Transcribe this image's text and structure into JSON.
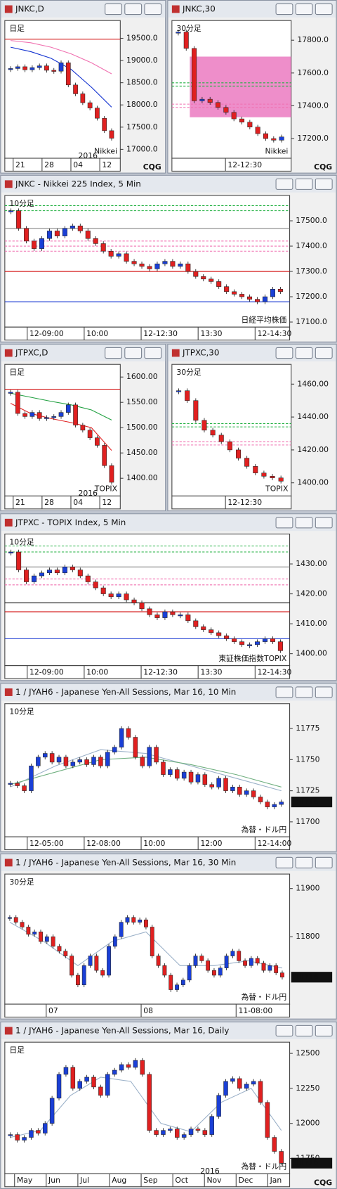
{
  "windows": [
    {
      "title": "JNKC,D",
      "chart": {
        "type": "candle",
        "label": "日足",
        "label_color": "#1030d0",
        "source": "Nikkei",
        "source_color": "#1030d0",
        "up_color": "#1a3fd6",
        "down_color": "#e02020",
        "ylim": [
          16800,
          19900
        ],
        "yticks": [
          {
            "value": 17000,
            "label": "17000.0"
          },
          {
            "value": 17500,
            "label": "17500.0"
          },
          {
            "value": 18000,
            "label": "18000.0"
          },
          {
            "value": 18500,
            "label": "18500.0"
          },
          {
            "value": 19000,
            "label": "19000.0"
          },
          {
            "value": 19500,
            "label": "19500.0"
          }
        ],
        "xlabels": [
          "21",
          "28",
          "04",
          "12"
        ],
        "year": "2016",
        "logo": "CQG",
        "values": [
          18820,
          18860,
          18790,
          18840,
          18880,
          18780,
          18760,
          18950,
          18450,
          18250,
          18050,
          17930,
          17700,
          17420,
          17250
        ],
        "levels": [
          {
            "value": 19480,
            "color": "#d00000",
            "style": "solid"
          }
        ],
        "mas": [
          {
            "color": "#f070b0",
            "values": [
              19450,
              19400,
              19300,
              19150,
              18950,
              18700
            ]
          },
          {
            "color": "#1030d0",
            "values": [
              19300,
              19200,
              19050,
              18800,
              18400,
              17950
            ]
          }
        ]
      }
    },
    {
      "title": "JNKC,30",
      "chart": {
        "type": "candle",
        "label": "30分足",
        "label_color": "#1030d0",
        "source": "Nikkei",
        "source_color": "#1030d0",
        "up_color": "#1a3fd6",
        "down_color": "#e02020",
        "ylim": [
          17080,
          17920
        ],
        "yticks": [
          {
            "value": 17200,
            "label": "17200.0"
          },
          {
            "value": 17400,
            "label": "17400.0"
          },
          {
            "value": 17600,
            "label": "17600.0"
          },
          {
            "value": 17800,
            "label": "17800.0"
          }
        ],
        "xlabels": [
          "12-12:30"
        ],
        "logo": "CQG",
        "zone": [
          17330,
          17700
        ],
        "zone_color": "#e868b8",
        "values": [
          17850,
          17750,
          17430,
          17440,
          17420,
          17390,
          17360,
          17320,
          17300,
          17270,
          17230,
          17200,
          17190,
          17210
        ],
        "levels": [
          {
            "value": 17540,
            "color": "#20b040",
            "style": "dashed"
          },
          {
            "value": 17520,
            "color": "#20b040",
            "style": "dashed"
          },
          {
            "value": 17410,
            "color": "#f070b0",
            "style": "dashed"
          },
          {
            "value": 17390,
            "color": "#f070b0",
            "style": "dashed"
          }
        ]
      }
    },
    {
      "title": "JNKC - Nikkei 225 Index, 5 Min",
      "chart": {
        "type": "candle",
        "label": "10分足",
        "label_color": "#1030d0",
        "source": "日経平均株価",
        "source_color": "#1030d0",
        "up_color": "#1a3fd6",
        "down_color": "#e02020",
        "ylim": [
          17080,
          17600
        ],
        "yticks": [
          {
            "value": 17100,
            "label": "17100.0"
          },
          {
            "value": 17200,
            "label": "17200.0"
          },
          {
            "value": 17300,
            "label": "17300.0"
          },
          {
            "value": 17400,
            "label": "17400.0"
          },
          {
            "value": 17500,
            "label": "17500.0"
          }
        ],
        "xlabels": [
          "12-09:00",
          "10:00",
          "12-12:30",
          "13:30",
          "12-14:30"
        ],
        "values": [
          17540,
          17470,
          17420,
          17390,
          17430,
          17460,
          17440,
          17470,
          17480,
          17460,
          17430,
          17410,
          17380,
          17360,
          17370,
          17340,
          17330,
          17320,
          17310,
          17330,
          17340,
          17320,
          17330,
          17300,
          17280,
          17270,
          17260,
          17240,
          17220,
          17210,
          17200,
          17190,
          17180,
          17200,
          17230,
          17220
        ],
        "levels": [
          {
            "value": 17560,
            "color": "#20b040",
            "style": "dashed"
          },
          {
            "value": 17540,
            "color": "#20b040",
            "style": "dashed"
          },
          {
            "value": 17470,
            "color": "#888888",
            "style": "solid"
          },
          {
            "value": 17420,
            "color": "#f070b0",
            "style": "dashed"
          },
          {
            "value": 17400,
            "color": "#f070b0",
            "style": "dashed"
          },
          {
            "value": 17380,
            "color": "#f070b0",
            "style": "dashed"
          },
          {
            "value": 17300,
            "color": "#d00000",
            "style": "solid"
          },
          {
            "value": 17180,
            "color": "#1030d0",
            "style": "solid"
          }
        ]
      }
    },
    {
      "title": "JTPXC,D",
      "chart": {
        "type": "candle",
        "label": "日足",
        "label_color": "#e02020",
        "source": "TOPIX",
        "source_color": "#e02020",
        "up_color": "#1a3fd6",
        "down_color": "#e02020",
        "ylim": [
          1365,
          1625
        ],
        "yticks": [
          {
            "value": 1400,
            "label": "1400.00"
          },
          {
            "value": 1450,
            "label": "1450.00"
          },
          {
            "value": 1500,
            "label": "1500.00"
          },
          {
            "value": 1550,
            "label": "1550.00"
          },
          {
            "value": 1600,
            "label": "1600.00"
          }
        ],
        "xlabels": [
          "21",
          "28",
          "04",
          "12"
        ],
        "year": "2016",
        "values": [
          1570,
          1528,
          1522,
          1530,
          1518,
          1520,
          1522,
          1530,
          1545,
          1505,
          1495,
          1480,
          1465,
          1425,
          1392
        ],
        "levels": [
          {
            "value": 1576,
            "color": "#d00000",
            "style": "solid"
          }
        ],
        "mas": [
          {
            "color": "#20a040",
            "values": [
              1568,
              1560,
              1552,
              1545,
              1535,
              1515
            ]
          },
          {
            "color": "#e02020",
            "values": [
              1548,
              1528,
              1518,
              1510,
              1500,
              1455
            ]
          }
        ]
      }
    },
    {
      "title": "JTPXC,30",
      "chart": {
        "type": "candle",
        "label": "30分足",
        "label_color": "#e02020",
        "source": "TOPIX",
        "source_color": "#e02020",
        "up_color": "#1a3fd6",
        "down_color": "#e02020",
        "ylim": [
          1392,
          1472
        ],
        "yticks": [
          {
            "value": 1400,
            "label": "1400.00"
          },
          {
            "value": 1420,
            "label": "1420.00"
          },
          {
            "value": 1440,
            "label": "1440.00"
          },
          {
            "value": 1460,
            "label": "1460.00"
          }
        ],
        "xlabels": [
          "12-12:30"
        ],
        "values": [
          1456,
          1450,
          1438,
          1432,
          1429,
          1425,
          1420,
          1415,
          1410,
          1406,
          1404,
          1403,
          1401
        ],
        "levels": [
          {
            "value": 1436,
            "color": "#20b040",
            "style": "dashed"
          },
          {
            "value": 1434,
            "color": "#20b040",
            "style": "dashed"
          },
          {
            "value": 1425,
            "color": "#f070b0",
            "style": "dashed"
          },
          {
            "value": 1423,
            "color": "#f070b0",
            "style": "dashed"
          }
        ]
      }
    },
    {
      "title": "JTPXC - TOPIX Index, 5 Min",
      "chart": {
        "type": "candle",
        "label": "10分足",
        "label_color": "#e02020",
        "source": "東証株価指数TOPIX",
        "source_color": "#e02020",
        "up_color": "#1a3fd6",
        "down_color": "#e02020",
        "ylim": [
          1396,
          1440
        ],
        "yticks": [
          {
            "value": 1400,
            "label": "1400.00"
          },
          {
            "value": 1410,
            "label": "1410.00"
          },
          {
            "value": 1420,
            "label": "1420.00"
          },
          {
            "value": 1430,
            "label": "1430.00"
          }
        ],
        "xlabels": [
          "12-09:00",
          "10:00",
          "12-12:30",
          "13:30",
          "12-14:30"
        ],
        "values": [
          1434,
          1428,
          1424,
          1426,
          1427,
          1428,
          1427,
          1429,
          1428,
          1426,
          1424,
          1422,
          1420,
          1419,
          1420,
          1418,
          1417,
          1415,
          1413,
          1412,
          1414,
          1413,
          1413,
          1411,
          1409,
          1408,
          1407,
          1406,
          1405,
          1404,
          1403,
          1403,
          1404,
          1405,
          1404,
          1401
        ],
        "levels": [
          {
            "value": 1436,
            "color": "#20b040",
            "style": "dashed"
          },
          {
            "value": 1434,
            "color": "#20b040",
            "style": "dashed"
          },
          {
            "value": 1429,
            "color": "#888888",
            "style": "solid"
          },
          {
            "value": 1425,
            "color": "#f070b0",
            "style": "dashed"
          },
          {
            "value": 1423,
            "color": "#f070b0",
            "style": "dashed"
          },
          {
            "value": 1417,
            "color": "#111111",
            "style": "solid"
          },
          {
            "value": 1414,
            "color": "#d00000",
            "style": "solid"
          },
          {
            "value": 1405,
            "color": "#1030d0",
            "style": "solid"
          }
        ]
      }
    },
    {
      "title": "1 / JYAH6 - Japanese Yen-All Sessions, Mar 16, 10 Min",
      "chart": {
        "type": "candle",
        "label": "10分足",
        "label_color": "#109030",
        "source": "為替・ドル円",
        "source_color": "#109030",
        "up_color": "#1a3fd6",
        "down_color": "#e02020",
        "ylim": [
          11688,
          11795
        ],
        "yticks": [
          11700,
          11725,
          11750,
          11775
        ],
        "xlabels": [
          "12-05:00",
          "12-08:00",
          "10:00",
          "12:00",
          "12-14:00"
        ],
        "last": 11716,
        "values": [
          11731,
          11729,
          11725,
          11745,
          11752,
          11755,
          11748,
          11752,
          11745,
          11748,
          11750,
          11746,
          11752,
          11745,
          11756,
          11760,
          11775,
          11768,
          11752,
          11745,
          11760,
          11748,
          11738,
          11742,
          11735,
          11740,
          11732,
          11738,
          11730,
          11728,
          11735,
          11725,
          11728,
          11722,
          11725,
          11720,
          11716,
          11712,
          11714,
          11716
        ],
        "mas": [
          {
            "color": "#9ab0c8",
            "values": [
              11728,
              11745,
              11758,
              11755,
              11745,
              11735,
              11725
            ]
          },
          {
            "color": "#70b080",
            "values": [
              11730,
              11740,
              11750,
              11752,
              11746,
              11738,
              11728
            ]
          }
        ]
      }
    },
    {
      "title": "1 / JYAH6 - Japanese Yen-All Sessions, Mar 16, 30 Min",
      "chart": {
        "type": "candle",
        "label": "30分足",
        "label_color": "#109030",
        "source": "為替・ドル円",
        "source_color": "#109030",
        "up_color": "#1a3fd6",
        "down_color": "#e02020",
        "ylim": [
          11660,
          11930
        ],
        "yticks": [
          11800,
          11900
        ],
        "xlabels": [
          "07",
          "08",
          "11-08:00"
        ],
        "last": 11716,
        "values": [
          11840,
          11830,
          11820,
          11805,
          11810,
          11790,
          11800,
          11780,
          11770,
          11760,
          11720,
          11700,
          11740,
          11760,
          11730,
          11720,
          11780,
          11800,
          11830,
          11840,
          11830,
          11835,
          11820,
          11760,
          11740,
          11720,
          11690,
          11700,
          11710,
          11740,
          11760,
          11750,
          11730,
          11720,
          11735,
          11760,
          11770,
          11750,
          11740,
          11755,
          11745,
          11730,
          11740,
          11725,
          11716
        ],
        "mas": [
          {
            "color": "#9ab0c8",
            "values": [
              11830,
              11790,
              11740,
              11790,
              11810,
              11740,
              11740,
              11750,
              11735
            ]
          }
        ]
      }
    },
    {
      "title": "1 / JYAH6 - Japanese Yen-All Sessions, Mar 16, Daily",
      "chart": {
        "type": "candle",
        "label": "日足",
        "label_color": "#109030",
        "source": "為替・ドル円",
        "source_color": "#109030",
        "up_color": "#1a3fd6",
        "down_color": "#e02020",
        "ylim": [
          11640,
          12580
        ],
        "yticks": [
          11750,
          12000,
          12250,
          12500
        ],
        "xlabels": [
          "May",
          "Jun",
          "Jul",
          "Aug",
          "Sep",
          "Oct",
          "Nov",
          "Dec",
          "Jan"
        ],
        "year": "2016",
        "logo": "CQG",
        "last": 11716,
        "values": [
          11920,
          11880,
          11900,
          11950,
          11930,
          12000,
          12180,
          12350,
          12400,
          12250,
          12300,
          12330,
          12260,
          12200,
          12350,
          12380,
          12420,
          12400,
          12450,
          12350,
          11950,
          11920,
          11950,
          11960,
          11900,
          11920,
          11960,
          11950,
          11920,
          12050,
          12200,
          12300,
          12320,
          12250,
          12280,
          12300,
          12150,
          11900,
          11800,
          11716
        ],
        "mas": [
          {
            "color": "#9ab0c8",
            "values": [
              11900,
              11950,
              12200,
              12330,
              12300,
              12000,
              11940,
              12150,
              12250,
              11950
            ]
          }
        ]
      }
    }
  ]
}
